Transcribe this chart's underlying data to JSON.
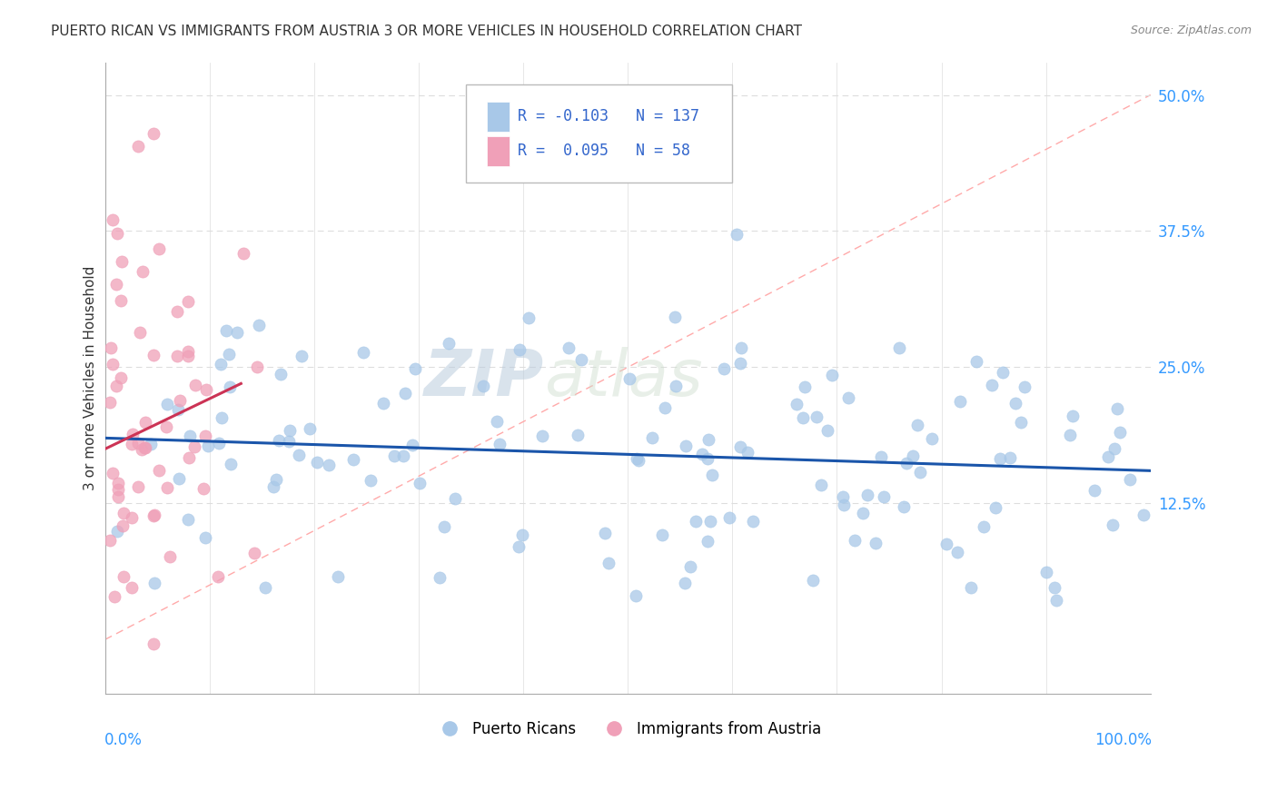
{
  "title": "PUERTO RICAN VS IMMIGRANTS FROM AUSTRIA 3 OR MORE VEHICLES IN HOUSEHOLD CORRELATION CHART",
  "source": "Source: ZipAtlas.com",
  "ylabel": "3 or more Vehicles in Household",
  "xlim": [
    0.0,
    1.0
  ],
  "ylim": [
    -0.05,
    0.53
  ],
  "blue_R": -0.103,
  "blue_N": 137,
  "pink_R": 0.095,
  "pink_N": 58,
  "blue_color": "#A8C8E8",
  "pink_color": "#F0A0B8",
  "blue_line_color": "#1A55AA",
  "pink_line_color": "#CC3355",
  "diag_color": "#DDDDDD",
  "grid_color": "#DDDDDD",
  "legend_label_blue": "Puerto Ricans",
  "legend_label_pink": "Immigrants from Austria",
  "ytick_positions": [
    0.0,
    0.125,
    0.25,
    0.375,
    0.5
  ],
  "ytick_labels": [
    "",
    "12.5%",
    "25.0%",
    "37.5%",
    "50.0%"
  ],
  "blue_trend_x": [
    0.0,
    1.0
  ],
  "blue_trend_y": [
    0.185,
    0.155
  ],
  "pink_trend_x": [
    0.0,
    0.13
  ],
  "pink_trend_y": [
    0.175,
    0.235
  ],
  "watermark_zip": "ZIP",
  "watermark_atlas": "atlas"
}
